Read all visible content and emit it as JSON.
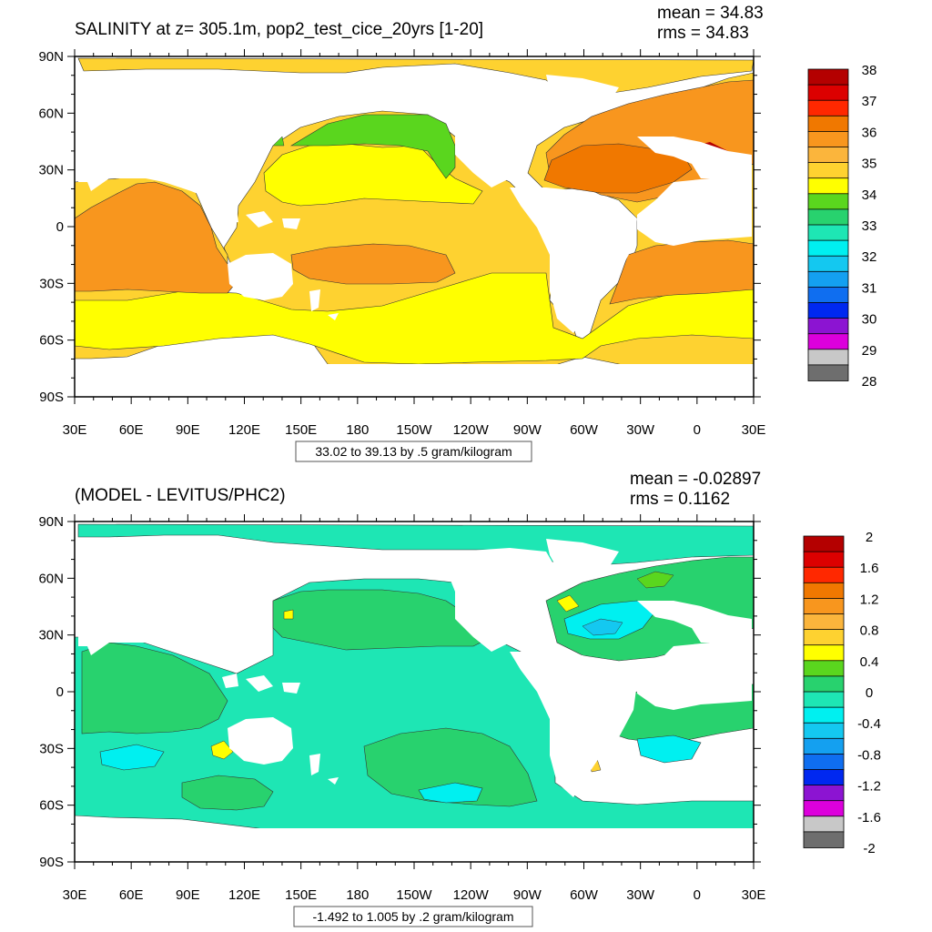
{
  "chart_data": [
    {
      "type": "heatmap",
      "title": "SALINITY at z= 305.1m, pop2_test_cice_20yrs [1-20]",
      "stats": {
        "mean": "mean = 34.83",
        "rms": "rms = 34.83"
      },
      "x_ticks": [
        "30E",
        "60E",
        "90E",
        "120E",
        "150E",
        "180",
        "150W",
        "120W",
        "90W",
        "60W",
        "30W",
        "0",
        "30E"
      ],
      "y_ticks": [
        "90N",
        "60N",
        "30N",
        "0",
        "30S",
        "60S",
        "90S"
      ],
      "contour_info": "33.02 to 39.13 by .5 gram/kilogram",
      "colorbar": {
        "labels": [
          "38",
          "37",
          "36",
          "35",
          "34",
          "33",
          "32",
          "31",
          "30",
          "29",
          "28"
        ],
        "colors": [
          "#b40000",
          "#dc0000",
          "#ff2800",
          "#f07800",
          "#f8961e",
          "#fbb53c",
          "#fed230",
          "#ffff00",
          "#5ad61e",
          "#28d26e",
          "#1ee6b4",
          "#00f0f0",
          "#14c8f0",
          "#14a0f0",
          "#0f6ef0",
          "#0028f0",
          "#8c14d2",
          "#dc00dc",
          "#c8c8c8",
          "#6e6e6e"
        ]
      },
      "mean_value": 34.83,
      "rms_value": 34.83
    },
    {
      "type": "heatmap",
      "title": "(MODEL - LEVITUS/PHC2)",
      "stats": {
        "mean": "mean = -0.02897",
        "rms": "rms = 0.1162"
      },
      "x_ticks": [
        "30E",
        "60E",
        "90E",
        "120E",
        "150E",
        "180",
        "150W",
        "120W",
        "90W",
        "60W",
        "30W",
        "0",
        "30E"
      ],
      "y_ticks": [
        "90N",
        "60N",
        "30N",
        "0",
        "30S",
        "60S",
        "90S"
      ],
      "contour_info": "-1.492 to 1.005 by .2 gram/kilogram",
      "colorbar": {
        "labels": [
          "2",
          "1.6",
          "1.2",
          "0.8",
          "0.4",
          "0",
          "-0.4",
          "-0.8",
          "-1.2",
          "-1.6",
          "-2"
        ],
        "colors": [
          "#b40000",
          "#dc0000",
          "#ff2800",
          "#f07800",
          "#f8961e",
          "#fbb53c",
          "#fed230",
          "#ffff00",
          "#5ad61e",
          "#28d26e",
          "#1ee6b4",
          "#00f0f0",
          "#14c8f0",
          "#14a0f0",
          "#0f6ef0",
          "#0028f0",
          "#8c14d2",
          "#dc00dc",
          "#c8c8c8",
          "#6e6e6e"
        ]
      },
      "mean_value": -0.02897,
      "rms_value": 0.1162
    }
  ]
}
